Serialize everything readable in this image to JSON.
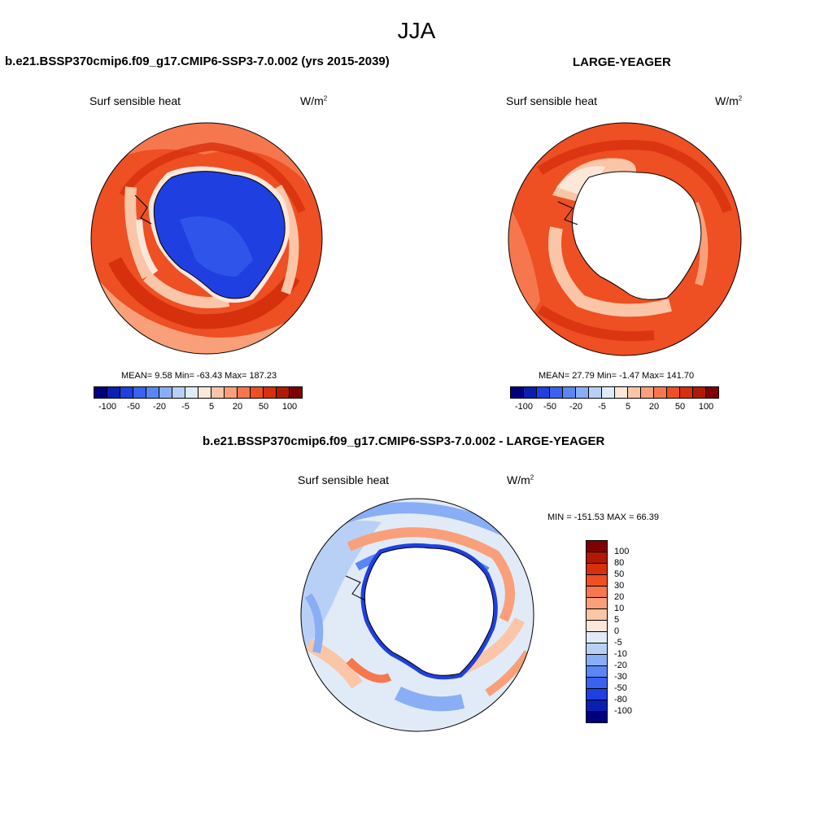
{
  "figure": {
    "season": "JJA"
  },
  "panels": [
    {
      "title": "b.e21.BSSP370cmip6.f09_g17.CMIP6-SSP3-7.0.002 (yrs 2015-2039)",
      "variable": "Surf sensible heat",
      "units_base": "W/m",
      "units_exp": "2",
      "stats": "MEAN=   9.58  Min= -63.43  Max= 187.23"
    },
    {
      "title": "LARGE-YEAGER",
      "variable": "Surf sensible heat",
      "units_base": "W/m",
      "units_exp": "2",
      "stats": "MEAN=  27.79  Min=  -1.47  Max= 141.70"
    },
    {
      "title": "b.e21.BSSP370cmip6.f09_g17.CMIP6-SSP3-7.0.002 - LARGE-YEAGER",
      "variable": "Surf sensible heat",
      "units_base": "W/m",
      "units_exp": "2",
      "stats": "MIN = -151.53 MAX =  66.39"
    }
  ],
  "chart_data": [
    {
      "type": "heatmap",
      "projection": "south-polar-stereographic",
      "title": "b.e21.BSSP370cmip6.f09_g17.CMIP6-SSP3-7.0.002 (yrs 2015-2039)",
      "field": "Surf sensible heat",
      "units": "W/m2",
      "mean": 9.58,
      "min": -63.43,
      "max": 187.23,
      "colorbar_levels": [
        -100,
        -80,
        -50,
        -30,
        -20,
        -10,
        -5,
        0,
        5,
        10,
        20,
        30,
        50,
        80,
        100
      ],
      "colorbar_tick_labels": [
        "-100",
        "-50",
        "-20",
        "-5",
        "5",
        "20",
        "50",
        "100"
      ],
      "colorbar_colors": [
        "#00007f",
        "#0a1fb0",
        "#1f3fe0",
        "#3a62f0",
        "#5b86f5",
        "#8aaef5",
        "#b9d0f6",
        "#e1ebf8",
        "#fde7d8",
        "#fbc5a7",
        "#f9a07a",
        "#f6774e",
        "#ee4f23",
        "#d6300c",
        "#b01a05",
        "#7f0000"
      ]
    },
    {
      "type": "heatmap",
      "projection": "south-polar-stereographic",
      "title": "LARGE-YEAGER",
      "field": "Surf sensible heat",
      "units": "W/m2",
      "mean": 27.79,
      "min": -1.47,
      "max": 141.7,
      "colorbar_levels": [
        -100,
        -80,
        -50,
        -30,
        -20,
        -10,
        -5,
        0,
        5,
        10,
        20,
        30,
        50,
        80,
        100
      ],
      "colorbar_tick_labels": [
        "-100",
        "-50",
        "-20",
        "-5",
        "5",
        "20",
        "50",
        "100"
      ],
      "colorbar_colors": [
        "#00007f",
        "#0a1fb0",
        "#1f3fe0",
        "#3a62f0",
        "#5b86f5",
        "#8aaef5",
        "#b9d0f6",
        "#e1ebf8",
        "#fde7d8",
        "#fbc5a7",
        "#f9a07a",
        "#f6774e",
        "#ee4f23",
        "#d6300c",
        "#b01a05",
        "#7f0000"
      ]
    },
    {
      "type": "heatmap",
      "projection": "south-polar-stereographic",
      "title": "b.e21.BSSP370cmip6.f09_g17.CMIP6-SSP3-7.0.002 - LARGE-YEAGER",
      "field": "Surf sensible heat",
      "units": "W/m2",
      "min": -151.53,
      "max": 66.39,
      "colorbar_tick_labels": [
        "100",
        "80",
        "50",
        "30",
        "20",
        "10",
        "5",
        "0",
        "-5",
        "-10",
        "-20",
        "-30",
        "-50",
        "-80",
        "-100"
      ],
      "colorbar_colors": [
        "#7f0000",
        "#b01a05",
        "#d6300c",
        "#ee4f23",
        "#f6774e",
        "#f9a07a",
        "#fbc5a7",
        "#fde7d8",
        "#e1ebf8",
        "#b9d0f6",
        "#8aaef5",
        "#5b86f5",
        "#3a62f0",
        "#1f3fe0",
        "#0a1fb0",
        "#00007f"
      ]
    }
  ]
}
